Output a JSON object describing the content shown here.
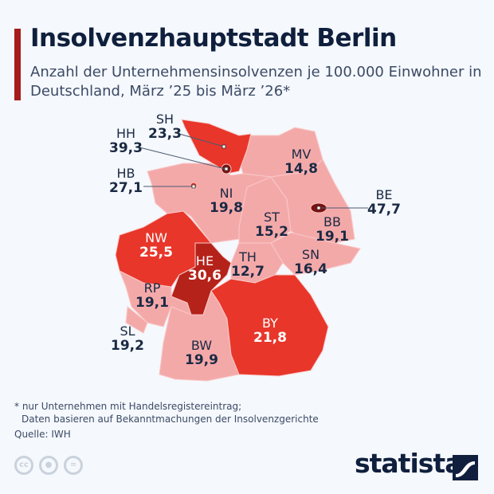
{
  "header": {
    "title": "Insolvenzhauptstadt Berlin",
    "subtitle": "Anzahl der Unternehmensinsolvenzen je 100.000 Einwohner in Deutschland, März ’25 bis März ’26*"
  },
  "colors": {
    "low": "#f4a9a9",
    "mid": "#e8362a",
    "high": "#b5221a",
    "top": "#7a1212",
    "text": "#1a2a44"
  },
  "states": [
    {
      "code": "SH",
      "value": "23,3"
    },
    {
      "code": "HH",
      "value": "39,3"
    },
    {
      "code": "HB",
      "value": "27,1"
    },
    {
      "code": "MV",
      "value": "14,8"
    },
    {
      "code": "NI",
      "value": "19,8"
    },
    {
      "code": "BE",
      "value": "47,7"
    },
    {
      "code": "ST",
      "value": "15,2"
    },
    {
      "code": "BB",
      "value": "19,1"
    },
    {
      "code": "NW",
      "value": "25,5"
    },
    {
      "code": "HE",
      "value": "30,6"
    },
    {
      "code": "TH",
      "value": "12,7"
    },
    {
      "code": "SN",
      "value": "16,4"
    },
    {
      "code": "RP",
      "value": "19,1"
    },
    {
      "code": "SL",
      "value": "19,2"
    },
    {
      "code": "BW",
      "value": "19,9"
    },
    {
      "code": "BY",
      "value": "21,8"
    }
  ],
  "footer": {
    "note_line1": "* nur Unternehmen mit Handelsregistereintrag;",
    "note_line2": "Daten basieren auf Bekanntmachungen der Insolvenzgerichte",
    "source": "Quelle: IWH",
    "cc": "cc",
    "logo": "statista"
  }
}
